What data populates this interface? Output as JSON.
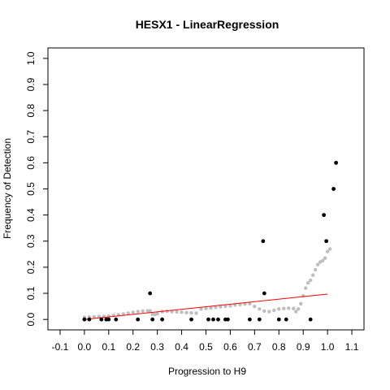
{
  "chart_data": {
    "type": "scatter",
    "title": "HESX1 - LinearRegression",
    "xlabel": "Progression to H9",
    "ylabel": "Frequency of Detection",
    "xlim": [
      -0.15,
      1.15
    ],
    "ylim": [
      -0.04,
      1.04
    ],
    "x_ticks": [
      "-0.1",
      "0.0",
      "0.1",
      "0.2",
      "0.3",
      "0.4",
      "0.5",
      "0.6",
      "0.7",
      "0.8",
      "0.9",
      "1.0",
      "1.1"
    ],
    "y_ticks": [
      "0.0",
      "0.1",
      "0.2",
      "0.3",
      "0.4",
      "0.5",
      "0.6",
      "0.7",
      "0.8",
      "0.9",
      "1.0"
    ],
    "grid": false,
    "colors": {
      "observed": "#000000",
      "smoothed": "#bebebe",
      "fit": "#ff0000"
    },
    "observed_points": [
      [
        0.0,
        0.0
      ],
      [
        0.02,
        0.0
      ],
      [
        0.07,
        0.0
      ],
      [
        0.09,
        0.0
      ],
      [
        0.1,
        0.0
      ],
      [
        0.13,
        0.0
      ],
      [
        0.22,
        0.0
      ],
      [
        0.27,
        0.1
      ],
      [
        0.28,
        0.0
      ],
      [
        0.32,
        0.0
      ],
      [
        0.44,
        0.0
      ],
      [
        0.51,
        0.0
      ],
      [
        0.53,
        0.0
      ],
      [
        0.55,
        0.0
      ],
      [
        0.58,
        0.0
      ],
      [
        0.59,
        0.0
      ],
      [
        0.68,
        0.0
      ],
      [
        0.72,
        0.0
      ],
      [
        0.735,
        0.3
      ],
      [
        0.74,
        0.1
      ],
      [
        0.8,
        0.0
      ],
      [
        0.83,
        0.0
      ],
      [
        0.93,
        0.0
      ],
      [
        0.985,
        0.4
      ],
      [
        0.995,
        0.3
      ],
      [
        1.025,
        0.5
      ],
      [
        1.035,
        0.6
      ]
    ],
    "smoothed_points": [
      [
        0.0,
        0.008
      ],
      [
        0.02,
        0.009
      ],
      [
        0.04,
        0.01
      ],
      [
        0.06,
        0.011
      ],
      [
        0.08,
        0.012
      ],
      [
        0.1,
        0.013
      ],
      [
        0.12,
        0.015
      ],
      [
        0.14,
        0.018
      ],
      [
        0.16,
        0.021
      ],
      [
        0.18,
        0.024
      ],
      [
        0.2,
        0.027
      ],
      [
        0.22,
        0.03
      ],
      [
        0.24,
        0.032
      ],
      [
        0.26,
        0.033
      ],
      [
        0.27,
        0.033
      ],
      [
        0.28,
        0.02
      ],
      [
        0.29,
        0.019
      ],
      [
        0.3,
        0.022
      ],
      [
        0.32,
        0.03
      ],
      [
        0.34,
        0.031
      ],
      [
        0.36,
        0.03
      ],
      [
        0.38,
        0.029
      ],
      [
        0.4,
        0.028
      ],
      [
        0.42,
        0.026
      ],
      [
        0.44,
        0.025
      ],
      [
        0.46,
        0.024
      ],
      [
        0.48,
        0.04
      ],
      [
        0.5,
        0.042
      ],
      [
        0.52,
        0.044
      ],
      [
        0.54,
        0.046
      ],
      [
        0.56,
        0.048
      ],
      [
        0.58,
        0.05
      ],
      [
        0.6,
        0.052
      ],
      [
        0.62,
        0.055
      ],
      [
        0.64,
        0.057
      ],
      [
        0.66,
        0.059
      ],
      [
        0.68,
        0.06
      ],
      [
        0.7,
        0.05
      ],
      [
        0.72,
        0.04
      ],
      [
        0.74,
        0.032
      ],
      [
        0.76,
        0.03
      ],
      [
        0.78,
        0.035
      ],
      [
        0.8,
        0.04
      ],
      [
        0.82,
        0.042
      ],
      [
        0.84,
        0.043
      ],
      [
        0.86,
        0.042
      ],
      [
        0.87,
        0.03
      ],
      [
        0.88,
        0.04
      ],
      [
        0.89,
        0.06
      ],
      [
        0.9,
        0.09
      ],
      [
        0.91,
        0.12
      ],
      [
        0.92,
        0.14
      ],
      [
        0.93,
        0.15
      ],
      [
        0.94,
        0.17
      ],
      [
        0.95,
        0.19
      ],
      [
        0.96,
        0.21
      ],
      [
        0.97,
        0.22
      ],
      [
        0.98,
        0.225
      ],
      [
        0.99,
        0.235
      ],
      [
        1.0,
        0.26
      ],
      [
        1.01,
        0.27
      ]
    ],
    "fit_line": {
      "x": [
        0.0,
        1.0
      ],
      "y": [
        0.0,
        0.097
      ]
    }
  }
}
